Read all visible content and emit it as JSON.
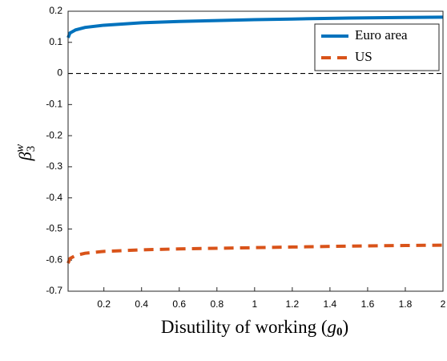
{
  "chart_data": {
    "type": "line",
    "xlabel": [
      "Disutility of working (",
      "g",
      "0",
      ")"
    ],
    "ylabel": [
      "β",
      "3",
      "w"
    ],
    "x": [
      0.01,
      0.02,
      0.05,
      0.1,
      0.2,
      0.4,
      0.6,
      0.8,
      1,
      1.2,
      1.5,
      1.8,
      2
    ],
    "series": [
      {
        "name": "Euro area",
        "color": "#0072bd",
        "dashed": false,
        "values": [
          0.115,
          0.13,
          0.14,
          0.148,
          0.155,
          0.163,
          0.167,
          0.17,
          0.173,
          0.175,
          0.178,
          0.18,
          0.181
        ]
      },
      {
        "name": "US",
        "color": "#d95319",
        "dashed": true,
        "values": [
          -0.61,
          -0.595,
          -0.585,
          -0.578,
          -0.572,
          -0.567,
          -0.564,
          -0.562,
          -0.56,
          -0.558,
          -0.555,
          -0.553,
          -0.552
        ]
      }
    ],
    "hline": 0,
    "xlim": [
      0.01,
      2
    ],
    "xticks": [
      0.2,
      0.4,
      0.6,
      0.8,
      1,
      1.2,
      1.4,
      1.6,
      1.8,
      2
    ],
    "ylim": [
      -0.7,
      0.2
    ],
    "yticks": [
      0.2,
      0.1,
      0,
      -0.1,
      -0.2,
      -0.3,
      -0.4,
      -0.5,
      -0.6,
      -0.7
    ],
    "legend": "upper right",
    "grid": false
  }
}
